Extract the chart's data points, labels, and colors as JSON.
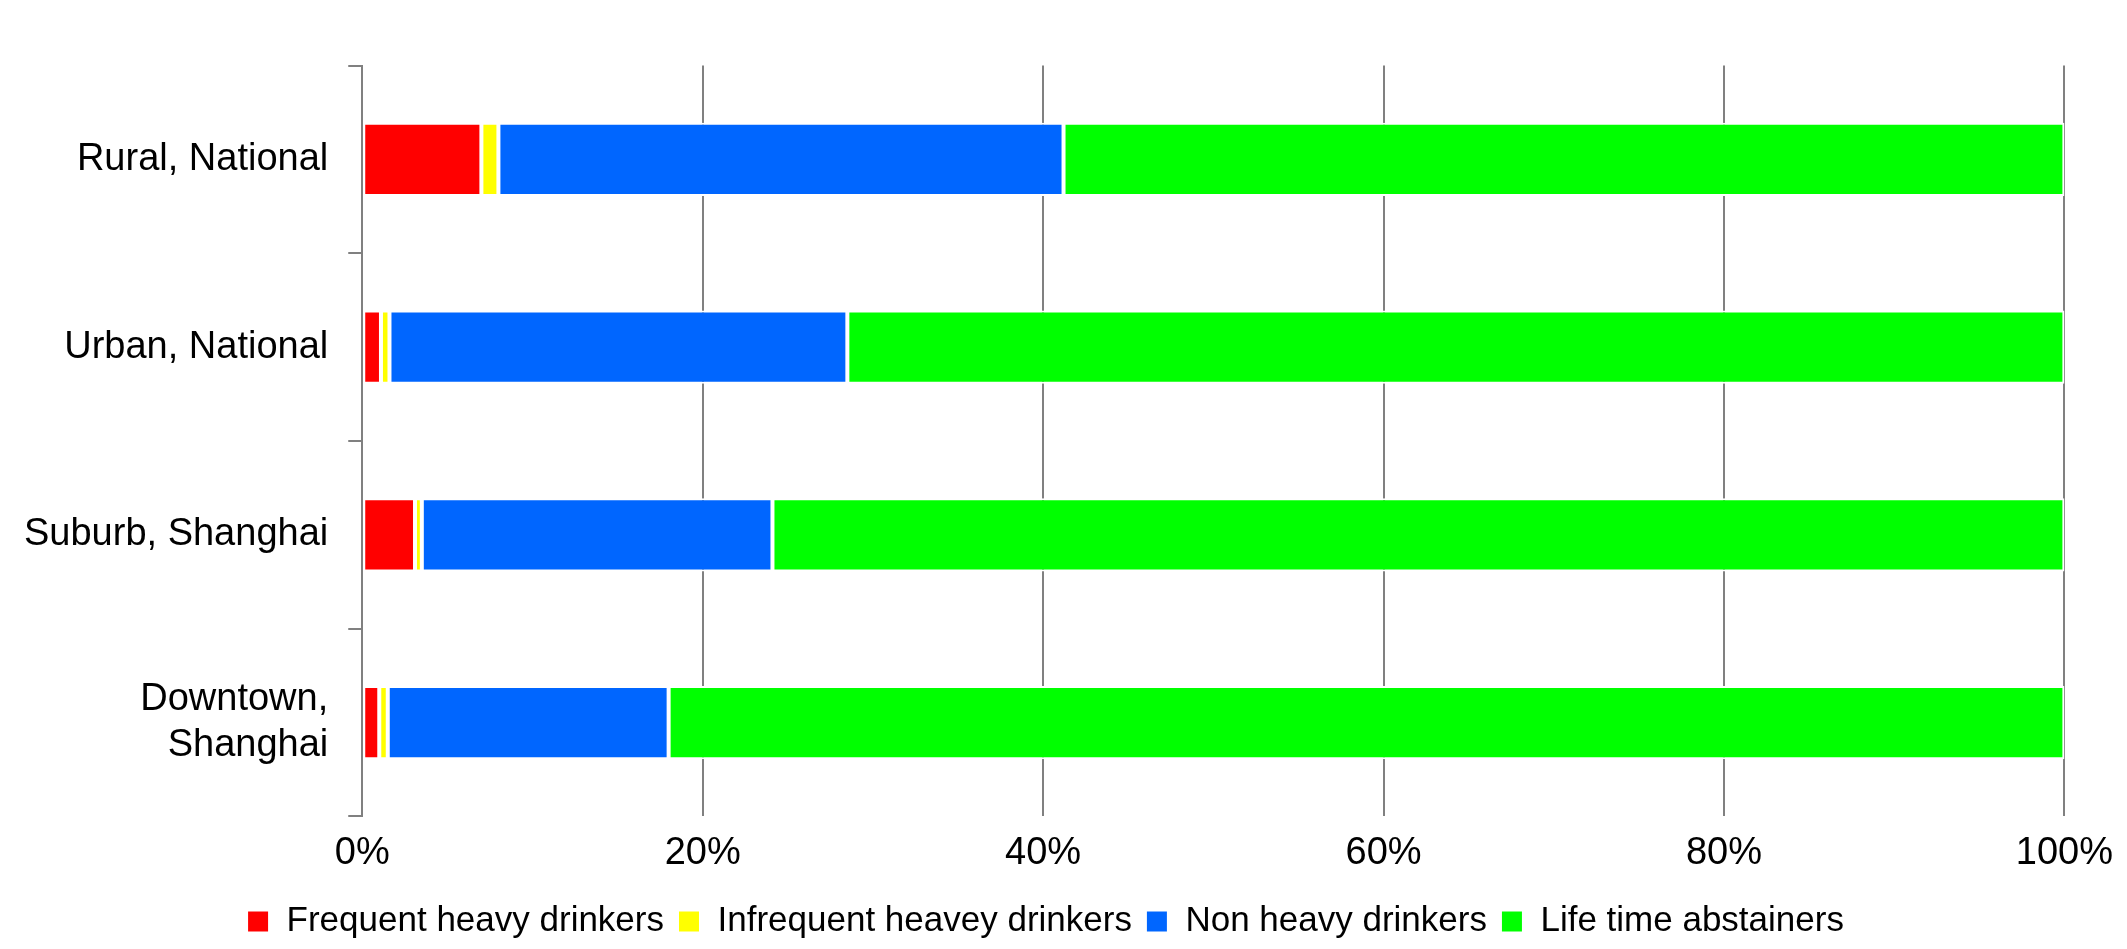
{
  "chart_data": {
    "type": "bar",
    "orientation": "horizontal",
    "stacked": true,
    "categories": [
      "Rural, National",
      "Urban, National",
      "Suburb, Shanghai",
      "Downtown, Shanghai"
    ],
    "series": [
      {
        "name": "Frequent heavy drinkers",
        "color": "#ff0000",
        "values": [
          7.0,
          1.1,
          3.1,
          1.0
        ]
      },
      {
        "name": "Infrequent heavey drinkers",
        "color": "#ffff00",
        "values": [
          1.0,
          0.5,
          0.4,
          0.5
        ]
      },
      {
        "name": "Non heavy drinkers",
        "color": "#0066ff",
        "values": [
          33.2,
          26.9,
          20.6,
          16.5
        ]
      },
      {
        "name": "Life time abstainers",
        "color": "#00ff00",
        "values": [
          58.8,
          71.5,
          75.9,
          82.0
        ]
      }
    ],
    "xlim": [
      0,
      100
    ],
    "xticks": [
      {
        "value": 0,
        "label": "0%"
      },
      {
        "value": 20,
        "label": "20%"
      },
      {
        "value": 40,
        "label": "40%"
      },
      {
        "value": 60,
        "label": "60%"
      },
      {
        "value": 80,
        "label": "80%"
      },
      {
        "value": 100,
        "label": "100%"
      }
    ],
    "grid": "x",
    "legend": "bottom"
  }
}
